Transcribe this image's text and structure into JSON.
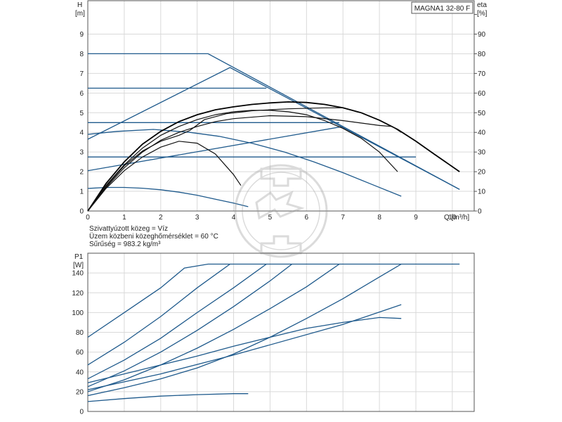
{
  "chart_data": [
    {
      "type": "line",
      "title": "MAGNA1 32-80 F",
      "xlabel": "Q [m³/h]",
      "ylabel": "H [m]",
      "y2label": "eta [%]",
      "y_unit_top": "H",
      "y_unit_bottom": "[m]",
      "y2_unit_top": "eta",
      "y2_unit_bottom": "[%]",
      "x_unit": "Q [m³/h]",
      "xlim": [
        0,
        10.6
      ],
      "ylim": [
        0,
        10.7
      ],
      "y2lim": [
        0,
        107
      ],
      "xticks": [
        "0",
        "1",
        "2",
        "3",
        "4",
        "5",
        "6",
        "7",
        "8",
        "9",
        "10"
      ],
      "yticks": [
        "0",
        "1",
        "2",
        "3",
        "4",
        "5",
        "6",
        "7",
        "8",
        "9"
      ],
      "y2ticks": [
        "0",
        "10",
        "20",
        "30",
        "40",
        "50",
        "60",
        "70",
        "80",
        "90"
      ],
      "grid": true,
      "info_lines": [
        "Szivattyúzott közeg = Víz",
        "Üzem közbeni közeghőmérséklet = 60 °C",
        "Sűrűség = 983.2 kg/m³"
      ],
      "series": [
        {
          "name": "max-speed",
          "color": "#1f5a8c",
          "x": [
            0,
            3.3,
            10.2
          ],
          "y": [
            8.0,
            8.0,
            1.1
          ]
        },
        {
          "name": "prop-pressure-max",
          "color": "#1f5a8c",
          "x": [
            0,
            3.9,
            10.2
          ],
          "y": [
            3.65,
            7.3,
            1.1
          ]
        },
        {
          "name": "const-6.25",
          "color": "#1f5a8c",
          "x": [
            0,
            4.9
          ],
          "y": [
            6.25,
            6.25
          ]
        },
        {
          "name": "const-4.5",
          "color": "#1f5a8c",
          "x": [
            0,
            6.9
          ],
          "y": [
            4.5,
            4.5
          ]
        },
        {
          "name": "prop-low",
          "color": "#1f5a8c",
          "x": [
            0,
            7.0
          ],
          "y": [
            2.05,
            4.3
          ]
        },
        {
          "name": "const-2.75",
          "color": "#1f5a8c",
          "x": [
            0,
            9.0
          ],
          "y": [
            2.75,
            2.75
          ]
        },
        {
          "name": "curve-mid",
          "color": "#1f5a8c",
          "x": [
            0,
            0.8,
            1.8,
            2.8,
            3.6,
            4.5,
            5.4,
            6.2,
            7.0,
            7.8,
            8.6
          ],
          "y": [
            3.9,
            4.05,
            4.15,
            4.0,
            3.8,
            3.45,
            3.0,
            2.5,
            1.95,
            1.35,
            0.75
          ]
        },
        {
          "name": "curve-min",
          "color": "#1f5a8c",
          "x": [
            0,
            0.5,
            1.0,
            1.5,
            2.0,
            2.5,
            3.0,
            3.5,
            4.0,
            4.4
          ],
          "y": [
            1.15,
            1.2,
            1.2,
            1.16,
            1.08,
            0.96,
            0.8,
            0.6,
            0.4,
            0.22
          ]
        },
        {
          "name": "eff-1",
          "color": "#000000",
          "x": [
            0,
            0.5,
            1.0,
            1.5,
            2.0,
            2.5,
            3.0,
            3.5,
            4.0,
            4.5,
            5.0,
            5.5,
            6.0,
            6.5,
            7.0,
            7.5,
            8.0,
            8.5,
            9.0,
            9.5,
            10.2
          ],
          "y": [
            0,
            1.4,
            2.5,
            3.4,
            4.05,
            4.55,
            4.9,
            5.15,
            5.3,
            5.42,
            5.5,
            5.55,
            5.52,
            5.42,
            5.25,
            5.0,
            4.62,
            4.15,
            3.55,
            2.9,
            2.0
          ]
        },
        {
          "name": "eff-2",
          "color": "#000000",
          "x": [
            0,
            0.5,
            1.0,
            1.5,
            2.0,
            2.5,
            3.0,
            3.5,
            4.0,
            4.5,
            5.0,
            5.5,
            6.0,
            6.5,
            7.0,
            7.5,
            8.0,
            8.5
          ],
          "y": [
            0,
            1.3,
            2.35,
            3.2,
            3.85,
            4.3,
            4.65,
            4.9,
            5.05,
            5.12,
            5.12,
            5.05,
            4.9,
            4.6,
            4.2,
            3.7,
            3.0,
            2.0
          ]
        },
        {
          "name": "eff-3",
          "color": "#000000",
          "x": [
            0,
            0.5,
            1.0,
            1.5,
            2.0,
            2.5,
            3.0,
            3.5,
            4.0,
            4.2
          ],
          "y": [
            0,
            1.15,
            2.05,
            2.75,
            3.25,
            3.55,
            3.45,
            2.9,
            1.85,
            1.3
          ]
        },
        {
          "name": "eff-4",
          "color": "#000000",
          "x": [
            0,
            0.5,
            1.0,
            1.5,
            2.0,
            2.5,
            3.0,
            3.5,
            4.0,
            5.0,
            6.0,
            7.0,
            8.0,
            8.35,
            8.6
          ],
          "y": [
            0,
            1.2,
            2.2,
            3.0,
            3.6,
            4.0,
            4.3,
            4.55,
            4.7,
            4.85,
            4.8,
            4.6,
            4.35,
            4.3,
            4.0
          ]
        },
        {
          "name": "eff-5",
          "color": "#000000",
          "x": [
            0,
            0.5,
            1.0,
            1.5,
            2.0,
            2.5,
            2.8,
            3.2,
            3.8,
            4.5,
            5.5,
            6.5,
            7.0
          ],
          "y": [
            0,
            1.25,
            2.3,
            3.05,
            3.55,
            3.85,
            4.1,
            4.65,
            4.95,
            5.1,
            5.2,
            5.25,
            5.25
          ]
        }
      ]
    },
    {
      "type": "line",
      "title": "",
      "xlabel": "",
      "ylabel": "P1 [W]",
      "y_unit_top": "P1",
      "y_unit_bottom": "[W]",
      "xlim": [
        0,
        10.6
      ],
      "ylim": [
        0,
        160
      ],
      "yticks": [
        "0",
        "20",
        "40",
        "60",
        "80",
        "100",
        "120",
        "140"
      ],
      "grid": true,
      "series": [
        {
          "name": "p-max",
          "color": "#1f5a8c",
          "x": [
            0,
            1.0,
            2.0,
            2.65,
            3.3,
            10.2
          ],
          "y": [
            75,
            100,
            125,
            145,
            149,
            149
          ]
        },
        {
          "name": "p-2",
          "color": "#1f5a8c",
          "x": [
            0,
            1.0,
            2.0,
            3.0,
            3.9
          ],
          "y": [
            47,
            70,
            96,
            125,
            149
          ]
        },
        {
          "name": "p-3",
          "color": "#1f5a8c",
          "x": [
            0,
            1.0,
            2.0,
            3.0,
            4.0,
            4.9
          ],
          "y": [
            33,
            52,
            74,
            100,
            125,
            149
          ]
        },
        {
          "name": "p-4",
          "color": "#1f5a8c",
          "x": [
            0,
            1.0,
            2.0,
            3.0,
            4.0,
            5.0,
            5.6
          ],
          "y": [
            25,
            41,
            60,
            82,
            106,
            132,
            149
          ]
        },
        {
          "name": "p-5",
          "color": "#1f5a8c",
          "x": [
            0,
            1.0,
            2.0,
            3.0,
            4.0,
            5.0,
            6.0,
            6.9
          ],
          "y": [
            20,
            32,
            47,
            64,
            83,
            104,
            126,
            149
          ]
        },
        {
          "name": "p-6",
          "color": "#1f5a8c",
          "x": [
            0,
            1.0,
            2.0,
            3.0,
            4.0,
            5.0,
            6.0,
            7.0,
            8.0,
            8.6
          ],
          "y": [
            16,
            24,
            33,
            44,
            58,
            75,
            94,
            114,
            136,
            149
          ]
        },
        {
          "name": "p-7",
          "color": "#1f5a8c",
          "x": [
            0,
            1.0,
            2.0,
            3.0,
            4.0,
            5.0,
            6.0,
            7.0,
            8.0,
            8.6
          ],
          "y": [
            29,
            38,
            47,
            56,
            66,
            75,
            84,
            90,
            95,
            94
          ]
        },
        {
          "name": "p-8",
          "color": "#1f5a8c",
          "x": [
            0,
            2.0,
            4.0,
            7.0,
            8.6
          ],
          "y": [
            22,
            38,
            57,
            88,
            108
          ]
        },
        {
          "name": "p-min",
          "color": "#1f5a8c",
          "x": [
            0,
            1.0,
            2.0,
            3.0,
            4.0,
            4.4
          ],
          "y": [
            10,
            13,
            15.5,
            17,
            18,
            18
          ]
        }
      ]
    }
  ]
}
